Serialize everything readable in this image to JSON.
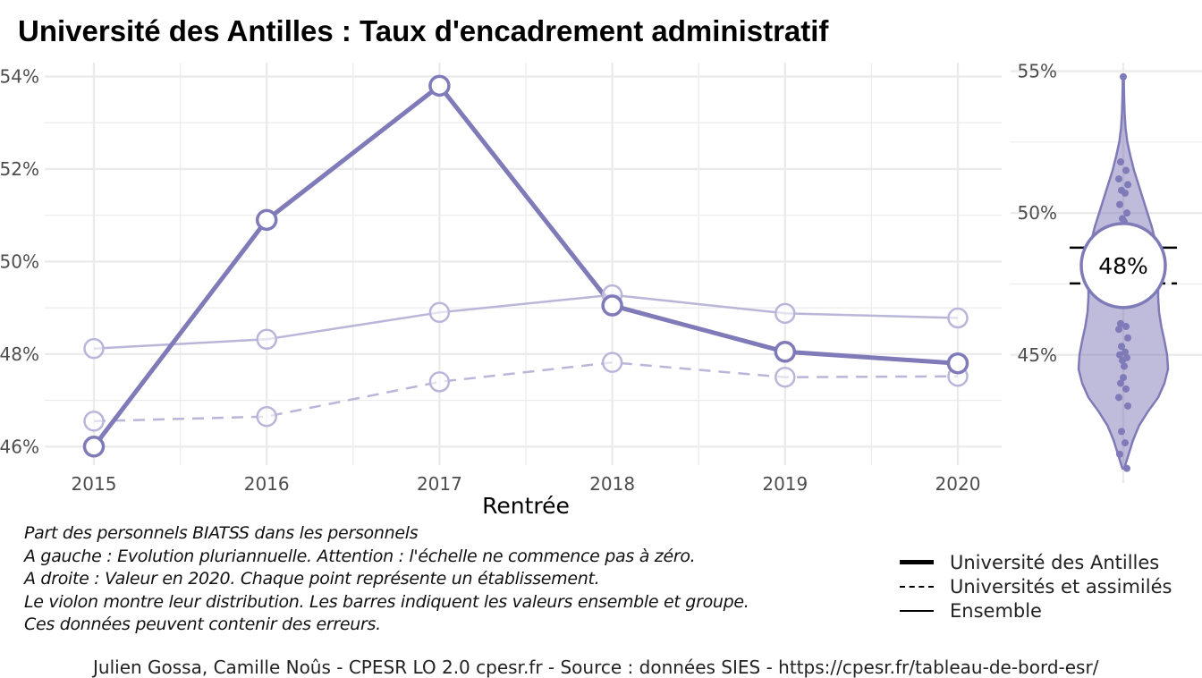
{
  "title": "Université des Antilles  :  Taux d'encadrement administratif",
  "caption": [
    "Part des personnels BIATSS dans les personnels",
    "A gauche : Evolution pluriannuelle. Attention : l'échelle ne commence pas à zéro.",
    "A droite : Valeur en 2020. Chaque point représente un établissement.",
    "Le violon montre leur distribution. Les barres indiquent les valeurs ensemble et groupe.",
    "Ces données peuvent contenir des erreurs."
  ],
  "credit": "Julien Gossa, Camille Noûs - CPESR LO 2.0 cpesr.fr - Source : données SIES - https://cpesr.fr/tableau-de-bord-esr/",
  "colors": {
    "accent": "#7f7ab8",
    "light": "#b9b6d9",
    "grid": "#ebebeb",
    "axis_text": "#4d4d4d"
  },
  "legend": {
    "items": [
      {
        "label": "Université des Antilles",
        "style": "thick"
      },
      {
        "label": "Universités et assimilés",
        "style": "dashed"
      },
      {
        "label": "Ensemble",
        "style": "thin"
      }
    ]
  },
  "chart_data": [
    {
      "type": "line",
      "xlabel": "Rentrée",
      "ylabel": "",
      "x": [
        2015,
        2016,
        2017,
        2018,
        2019,
        2020
      ],
      "ylim": [
        45.6,
        54.3
      ],
      "yticks": [
        46,
        48,
        50,
        52,
        54
      ],
      "ytick_labels": [
        "46%",
        "48%",
        "50%",
        "52%",
        "54%"
      ],
      "grid": true,
      "series": [
        {
          "name": "Université des Antilles",
          "style": "thick",
          "values": [
            46.0,
            50.9,
            53.8,
            49.05,
            48.05,
            47.8
          ]
        },
        {
          "name": "Universités et assimilés",
          "style": "dashed",
          "values": [
            46.55,
            46.65,
            47.4,
            47.82,
            47.5,
            47.52
          ]
        },
        {
          "name": "Ensemble",
          "style": "thin",
          "values": [
            48.12,
            48.32,
            48.9,
            49.28,
            48.88,
            48.78
          ]
        }
      ]
    },
    {
      "type": "scatter",
      "subtype": "violin",
      "ylim": [
        40.8,
        55.3
      ],
      "yticks": [
        45,
        50,
        55
      ],
      "ytick_labels": [
        "45%",
        "50%",
        "55%"
      ],
      "highlight_value": 47.8,
      "highlight_label": "48%",
      "reference_lines": [
        {
          "name": "Ensemble",
          "value": 48.78,
          "style": "thin"
        },
        {
          "name": "Universités et assimilés",
          "value": 47.52,
          "style": "dashed"
        }
      ],
      "points": [
        54.8,
        51.8,
        51.5,
        51.2,
        51.0,
        50.8,
        50.7,
        50.3,
        50.0,
        49.8,
        49.7,
        49.5,
        46.1,
        46.0,
        45.9,
        45.6,
        45.3,
        45.1,
        45.0,
        44.9,
        44.8,
        44.6,
        44.2,
        44.0,
        43.8,
        43.5,
        43.2,
        42.3,
        41.9,
        41.5,
        41.0
      ],
      "violin_density": [
        [
          41.0,
          0.02
        ],
        [
          41.5,
          0.12
        ],
        [
          42.0,
          0.22
        ],
        [
          42.5,
          0.35
        ],
        [
          43.0,
          0.55
        ],
        [
          43.5,
          0.78
        ],
        [
          44.0,
          0.92
        ],
        [
          44.5,
          1.0
        ],
        [
          45.0,
          0.98
        ],
        [
          45.5,
          0.92
        ],
        [
          46.0,
          0.85
        ],
        [
          46.5,
          0.8
        ],
        [
          47.0,
          0.78
        ],
        [
          47.5,
          0.78
        ],
        [
          48.0,
          0.8
        ],
        [
          48.5,
          0.78
        ],
        [
          49.0,
          0.72
        ],
        [
          49.5,
          0.64
        ],
        [
          50.0,
          0.54
        ],
        [
          50.5,
          0.44
        ],
        [
          51.0,
          0.34
        ],
        [
          51.5,
          0.24
        ],
        [
          52.0,
          0.16
        ],
        [
          52.5,
          0.09
        ],
        [
          53.0,
          0.05
        ],
        [
          53.5,
          0.03
        ],
        [
          54.0,
          0.02
        ],
        [
          54.8,
          0.01
        ]
      ]
    }
  ]
}
